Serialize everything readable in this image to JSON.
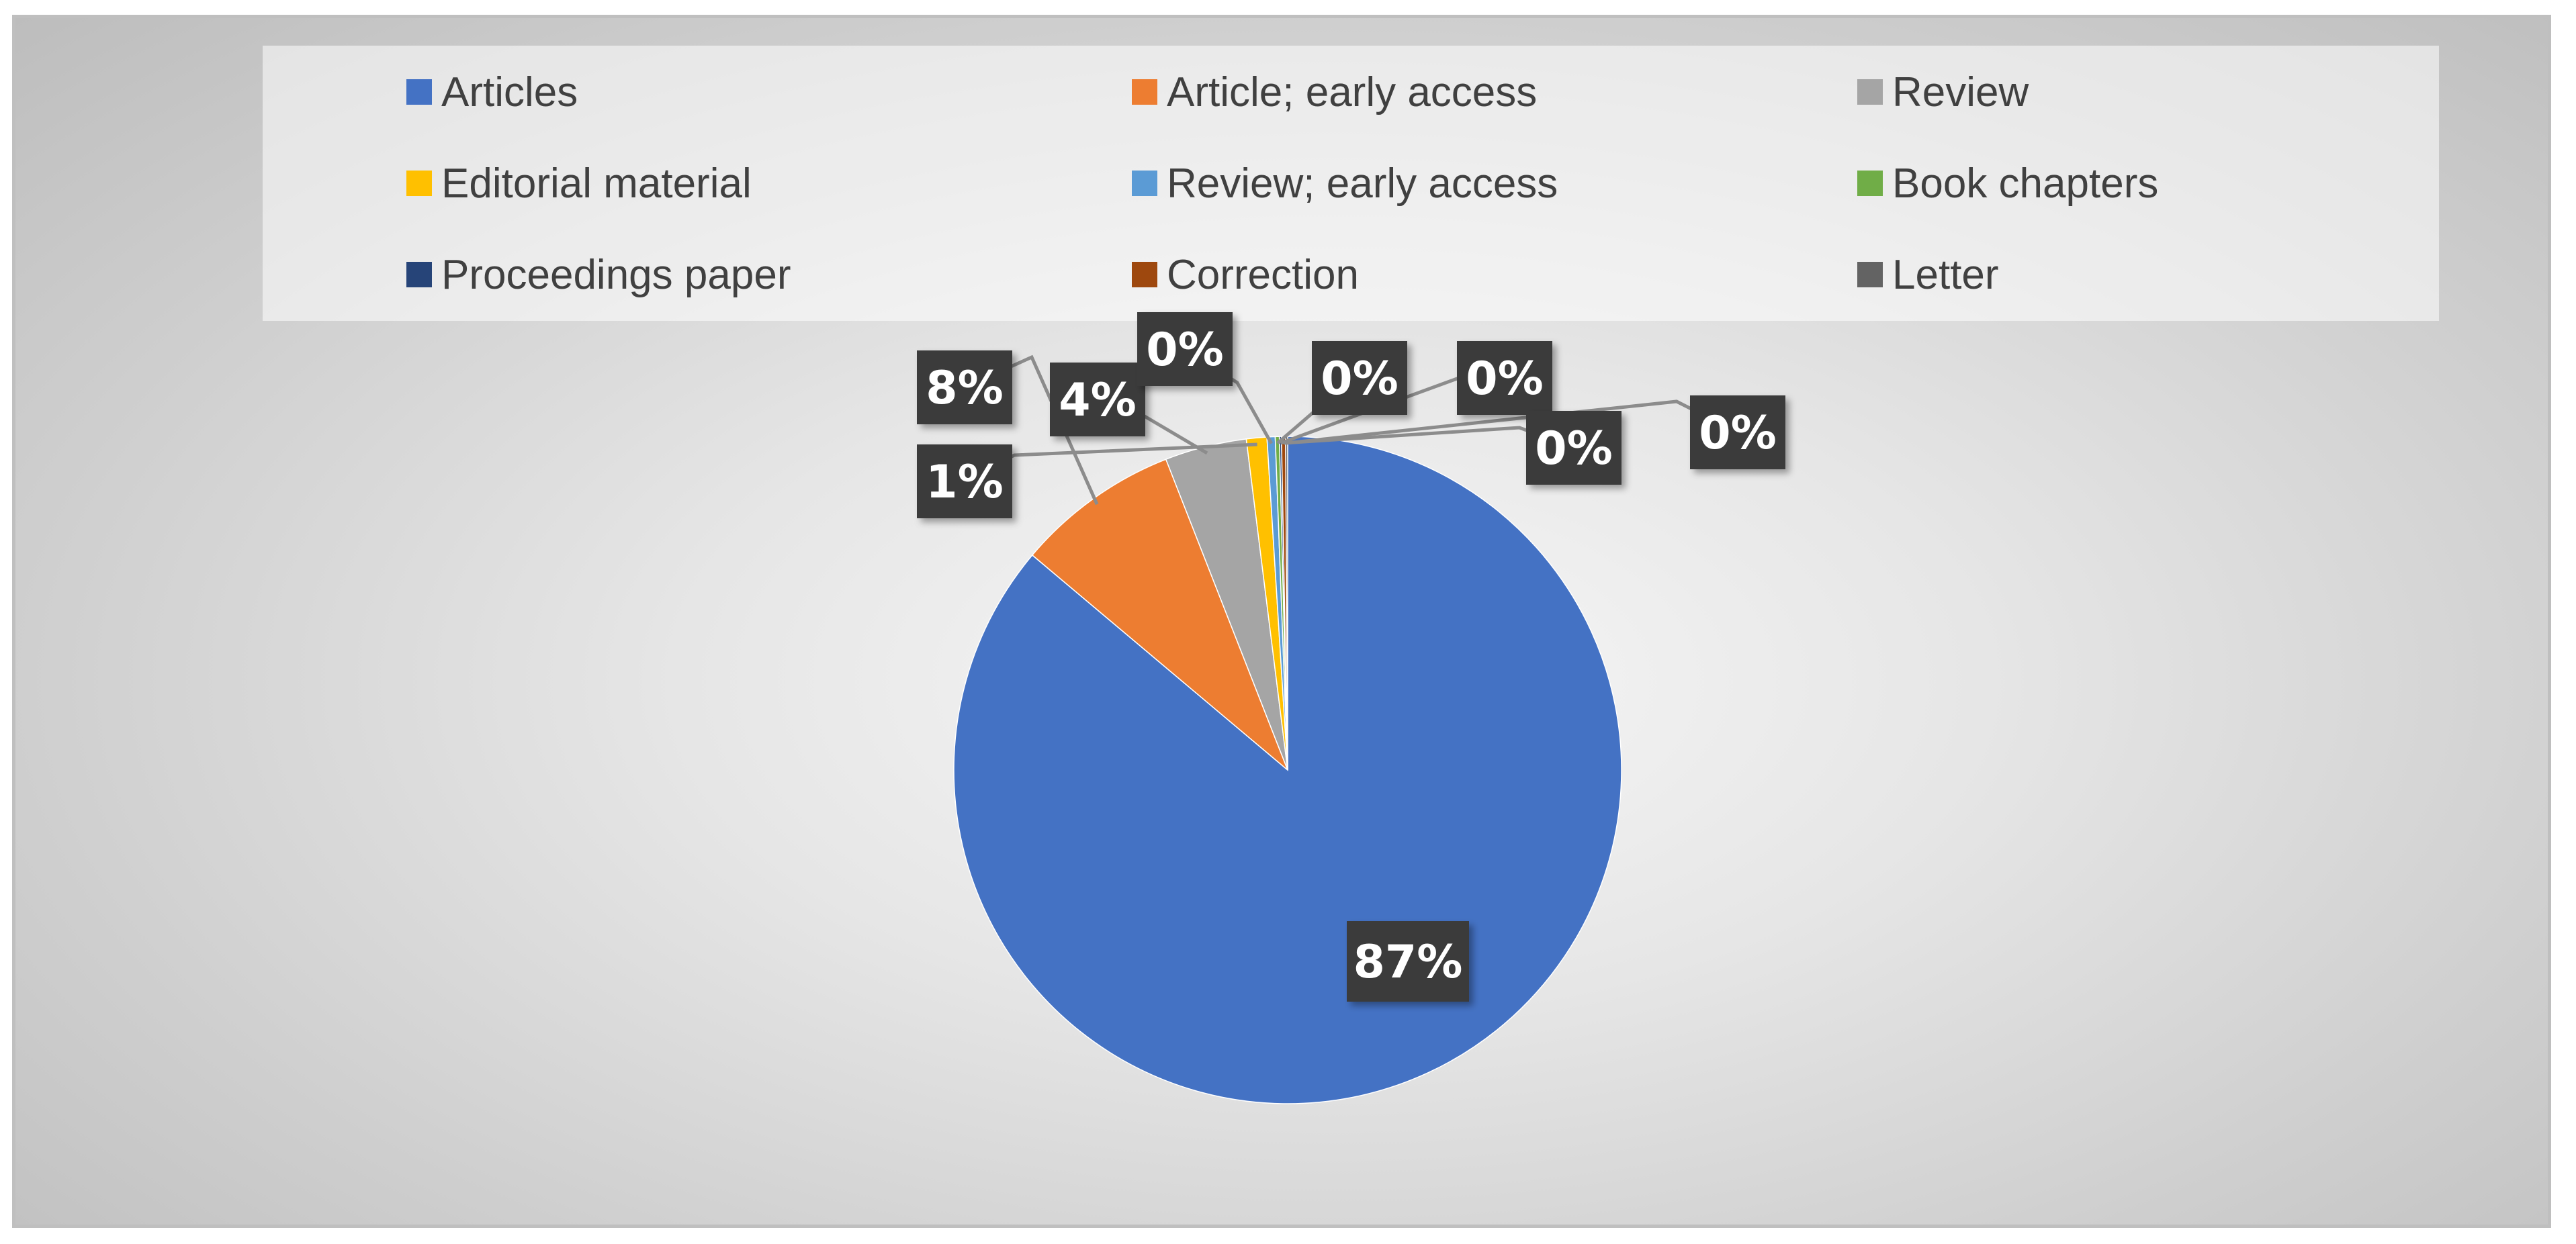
{
  "chart_data": {
    "type": "pie",
    "title": "",
    "categories": [
      "Articles",
      "Article; early access",
      "Review",
      "Editorial material",
      "Review; early access",
      "Book chapters",
      "Proceedings paper",
      "Correction",
      "Letter"
    ],
    "values": [
      87,
      8,
      4,
      1,
      0.4,
      0.2,
      0.1,
      0.2,
      0.1
    ],
    "data_labels": [
      "87%",
      "8%",
      "4%",
      "1%",
      "0%",
      "0%",
      "0%",
      "0%",
      "0%"
    ],
    "colors": [
      "#4472C4",
      "#ED7D31",
      "#A5A5A5",
      "#FFC000",
      "#5B9BD5",
      "#70AD47",
      "#264478",
      "#9E480E",
      "#636363"
    ],
    "legend": {
      "placement": "top",
      "entries": [
        "Articles",
        "Article; early access",
        "Review",
        "Editorial material",
        "Review; early access",
        "Book chapters",
        "Proceedings paper",
        "Correction",
        "Letter"
      ]
    }
  }
}
